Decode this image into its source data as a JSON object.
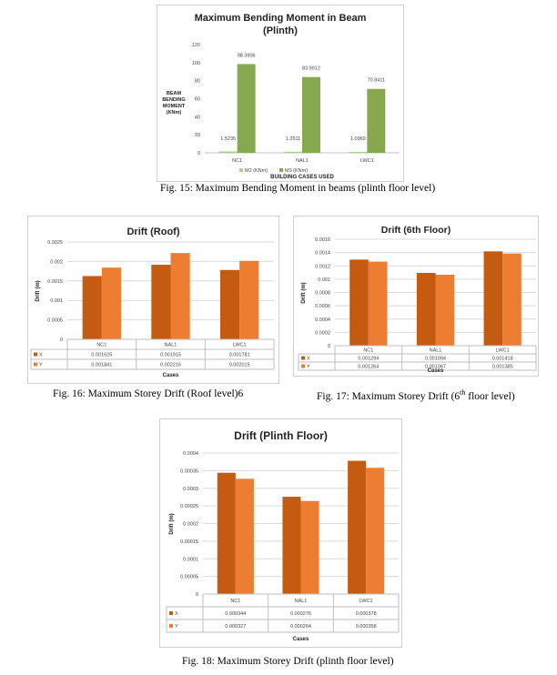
{
  "captions": {
    "fig15": "Fig. 15: Maximum Bending Moment in beams (plinth floor level)",
    "fig16": "Fig. 16: Maximum Storey Drift (Roof level)6",
    "fig17_pre": "Fig. 17: Maximum Storey Drift (6",
    "fig17_sup": "th",
    "fig17_post": " floor level)",
    "fig18": "Fig. 18: Maximum Storey Drift (plinth floor level)"
  },
  "chart_data": [
    {
      "type": "bar",
      "title": "Maximum Bending Moment in Beam (Plinth)",
      "title_lines": [
        "Maximum Bending Moment in Beam",
        "(Plinth)"
      ],
      "xlabel": "BUILDING CASES USED",
      "ylabel_lines": [
        "BEAM",
        "BENDING",
        "MOMENT",
        "(KNm)"
      ],
      "categories": [
        "NC1",
        "NAL1",
        "LWC1"
      ],
      "series": [
        {
          "name": "M2 (KNm)",
          "values": [
            1.5235,
            1.2611,
            1.0969
          ],
          "labels": [
            "1.5235",
            "1.2611",
            "1.0969"
          ],
          "color": "#a9cf8a"
        },
        {
          "name": "M3 (KNm)",
          "values": [
            98.3906,
            83.9912,
            70.8411
          ],
          "labels": [
            "98.3906",
            "83.9912",
            "70.8411"
          ],
          "color": "#86a84e"
        }
      ],
      "ylim": [
        0,
        120
      ],
      "yticks": [
        "0",
        "20",
        "40",
        "60",
        "80",
        "100",
        "120"
      ],
      "grid": false,
      "legend": "bottom"
    },
    {
      "type": "bar",
      "title": "Drift (Roof)",
      "title_lines": [
        "Drift (Roof)"
      ],
      "xlabel": "Cases",
      "ylabel_lines": [
        "Drift (m)"
      ],
      "categories": [
        "NC1",
        "NAL1",
        "LWC1"
      ],
      "series": [
        {
          "name": "X",
          "values": [
            0.001625,
            0.001915,
            0.001781
          ],
          "labels": [
            "0.001625",
            "0.001915",
            "0.001781"
          ],
          "color": "#c55a11"
        },
        {
          "name": "Y",
          "values": [
            0.001841,
            0.002216,
            0.002015
          ],
          "labels": [
            "0.001841",
            "0.002216",
            "0.002015"
          ],
          "color": "#ed7d31"
        }
      ],
      "ylim": [
        0,
        0.0025
      ],
      "yticks": [
        "0",
        "0.0005",
        "0.001",
        "0.0015",
        "0.002",
        "0.0025"
      ],
      "grid": true,
      "legend": "data-table"
    },
    {
      "type": "bar",
      "title": "Drift (6th Floor)",
      "title_lines": [
        "Drift (6th Floor)"
      ],
      "xlabel": "Cases",
      "ylabel_lines": [
        "Drift (m)"
      ],
      "categories": [
        "NC1",
        "NAL1",
        "LWC1"
      ],
      "series": [
        {
          "name": "X",
          "values": [
            0.001294,
            0.001094,
            0.001418
          ],
          "labels": [
            "0.001294",
            "0.001094",
            "0.001418"
          ],
          "color": "#c55a11"
        },
        {
          "name": "Y",
          "values": [
            0.001264,
            0.001067,
            0.001385
          ],
          "labels": [
            "0.001264",
            "0.001067",
            "0.001385"
          ],
          "color": "#ed7d31"
        }
      ],
      "ylim": [
        0,
        0.0016
      ],
      "yticks": [
        "0",
        "0.0002",
        "0.0004",
        "0.0006",
        "0.0008",
        "0.001",
        "0.0012",
        "0.0014",
        "0.0016"
      ],
      "grid": true,
      "legend": "data-table"
    },
    {
      "type": "bar",
      "title": "Drift (Plinth Floor)",
      "title_lines": [
        "Drift (Plinth Floor)"
      ],
      "xlabel": "Cases",
      "ylabel_lines": [
        "Drift (m)"
      ],
      "categories": [
        "NC1",
        "NAL1",
        "LWC1"
      ],
      "series": [
        {
          "name": "X",
          "values": [
            0.000344,
            0.000276,
            0.000378
          ],
          "labels": [
            "0.000344",
            "0.000276",
            "0.000378"
          ],
          "color": "#c55a11"
        },
        {
          "name": "Y",
          "values": [
            0.000327,
            0.000264,
            0.000358
          ],
          "labels": [
            "0.000327",
            "0.000264",
            "0.000358"
          ],
          "color": "#ed7d31"
        }
      ],
      "ylim": [
        0,
        0.0004
      ],
      "yticks": [
        "0",
        "0.00005",
        "0.0001",
        "0.00015",
        "0.0002",
        "0.00025",
        "0.0003",
        "0.00035",
        "0.0004"
      ],
      "grid": true,
      "legend": "data-table"
    }
  ]
}
